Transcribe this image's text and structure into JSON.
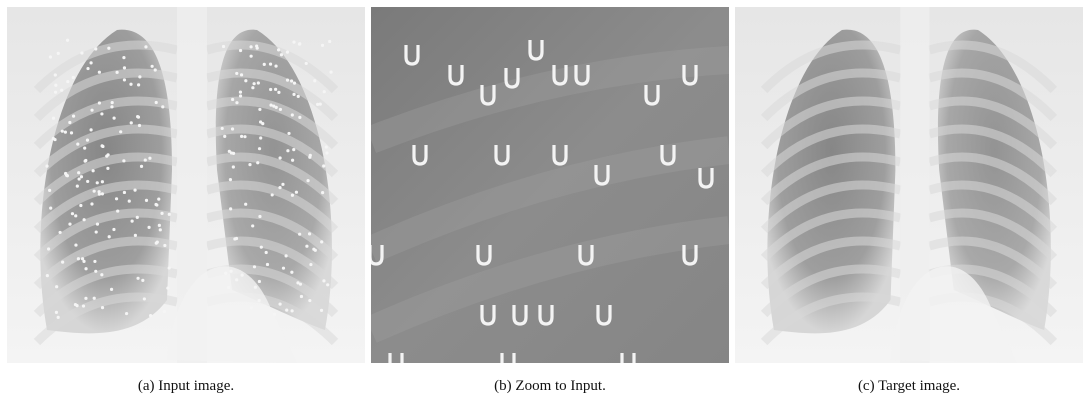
{
  "figures": [
    {
      "caption": "(a) Input image."
    },
    {
      "caption": "(b) Zoom to Input."
    },
    {
      "caption": "(c) Target image."
    }
  ]
}
